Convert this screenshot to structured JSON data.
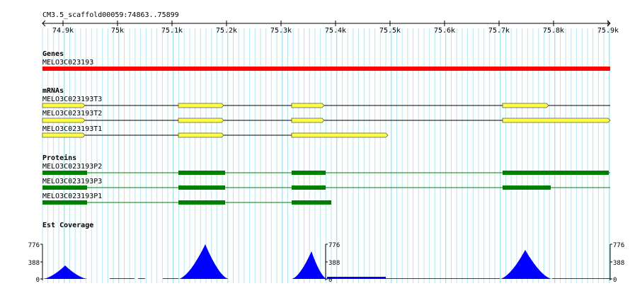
{
  "region": "CM3.5_scaffold00059:74863..75899",
  "ruler": {
    "ticks": [
      "74.9k",
      "75k",
      "75.1k",
      "75.2k",
      "75.3k",
      "75.4k",
      "75.5k",
      "75.6k",
      "75.7k",
      "75.8k",
      "75.9k"
    ]
  },
  "tracks": {
    "genes": {
      "title": "Genes",
      "features": [
        {
          "name": "MELO3C023193",
          "color": "#ff0000"
        }
      ]
    },
    "mrnas": {
      "title": "mRNAs",
      "features": [
        {
          "name": "MELO3C023193T3"
        },
        {
          "name": "MELO3C023193T2"
        },
        {
          "name": "MELO3C023193T1"
        }
      ]
    },
    "proteins": {
      "title": "Proteins",
      "features": [
        {
          "name": "MELO3C023193P2"
        },
        {
          "name": "MELO3C023193P3"
        },
        {
          "name": "MELO3C023193P1"
        }
      ]
    },
    "est": {
      "title": "Est Coverage",
      "scale_labels": [
        "776",
        "388",
        "0"
      ]
    }
  },
  "colors": {
    "grid": "#b7e7f0",
    "gene": "#ff0000",
    "exon": "#ffff44",
    "protein": "#008000",
    "coverage": "#0000ff"
  }
}
